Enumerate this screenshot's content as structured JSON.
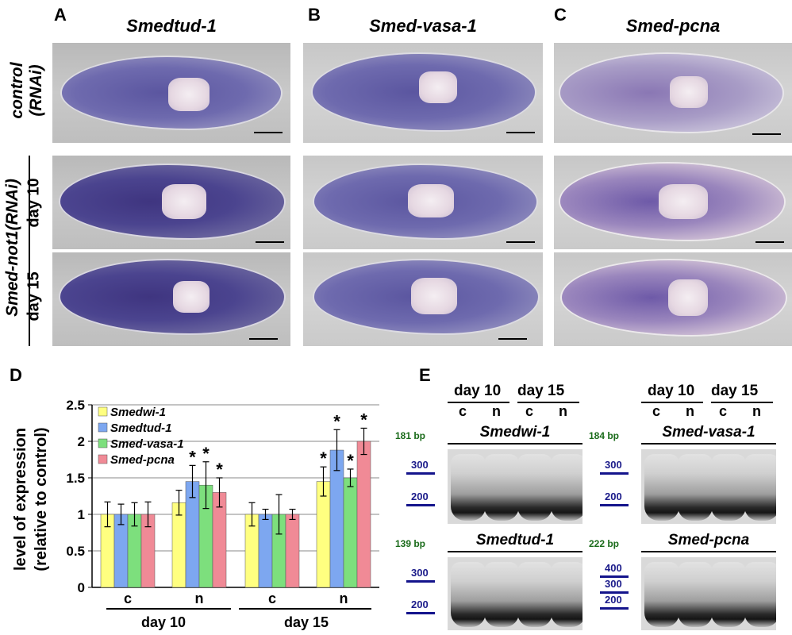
{
  "panels": {
    "A": "A",
    "B": "B",
    "C": "C",
    "D": "D",
    "E": "E"
  },
  "columns": [
    "Smedtud-1",
    "Smed-vasa-1",
    "Smed-pcna"
  ],
  "rows": {
    "control_line1": "control",
    "control_line2": "(RNAi)",
    "not1": "Smed-not1(RNAi)",
    "day10": "day 10",
    "day15": "day 15"
  },
  "chart_data": {
    "type": "bar",
    "ylabel": "level of expression (relative to control)",
    "ylim": [
      0,
      2.5
    ],
    "yticks": [
      "0",
      "0.5",
      "1",
      "1.5",
      "2",
      "2.5"
    ],
    "categories": [
      "c",
      "n",
      "c",
      "n"
    ],
    "groups": [
      "day 10",
      "day 15"
    ],
    "series": [
      {
        "name": "Smedwi-1",
        "color": "#ffff80",
        "values": [
          1.0,
          1.16,
          1.0,
          1.45
        ],
        "errors": [
          0.17,
          0.17,
          0.16,
          0.2
        ],
        "sig": [
          false,
          false,
          false,
          true
        ]
      },
      {
        "name": "Smedtud-1",
        "color": "#7da7f0",
        "values": [
          1.0,
          1.45,
          1.0,
          1.88
        ],
        "errors": [
          0.14,
          0.22,
          0.07,
          0.28
        ],
        "sig": [
          false,
          true,
          false,
          true
        ]
      },
      {
        "name": "Smed-vasa-1",
        "color": "#7ddf7d",
        "values": [
          1.0,
          1.4,
          1.0,
          1.5
        ],
        "errors": [
          0.16,
          0.32,
          0.27,
          0.12
        ],
        "sig": [
          false,
          true,
          false,
          true
        ]
      },
      {
        "name": "Smed-pcna",
        "color": "#f08a96",
        "values": [
          1.0,
          1.3,
          1.0,
          2.0
        ],
        "errors": [
          0.17,
          0.2,
          0.07,
          0.18
        ],
        "sig": [
          false,
          true,
          false,
          true
        ]
      }
    ],
    "sig_label": "*",
    "legend_position": "top-left",
    "grid": true
  },
  "gels": {
    "day10": "day 10",
    "day15": "day 15",
    "c": "c",
    "n": "n",
    "items": [
      {
        "gene": "Smedwi-1",
        "bp": "181 bp",
        "markers": [
          "300",
          "200"
        ]
      },
      {
        "gene": "Smed-vasa-1",
        "bp": "184 bp",
        "markers": [
          "300",
          "200"
        ]
      },
      {
        "gene": "Smedtud-1",
        "bp": "139 bp",
        "markers": [
          "300",
          "200"
        ]
      },
      {
        "gene": "Smed-pcna",
        "bp": "222 bp",
        "markers": [
          "400",
          "300",
          "200"
        ]
      }
    ]
  }
}
